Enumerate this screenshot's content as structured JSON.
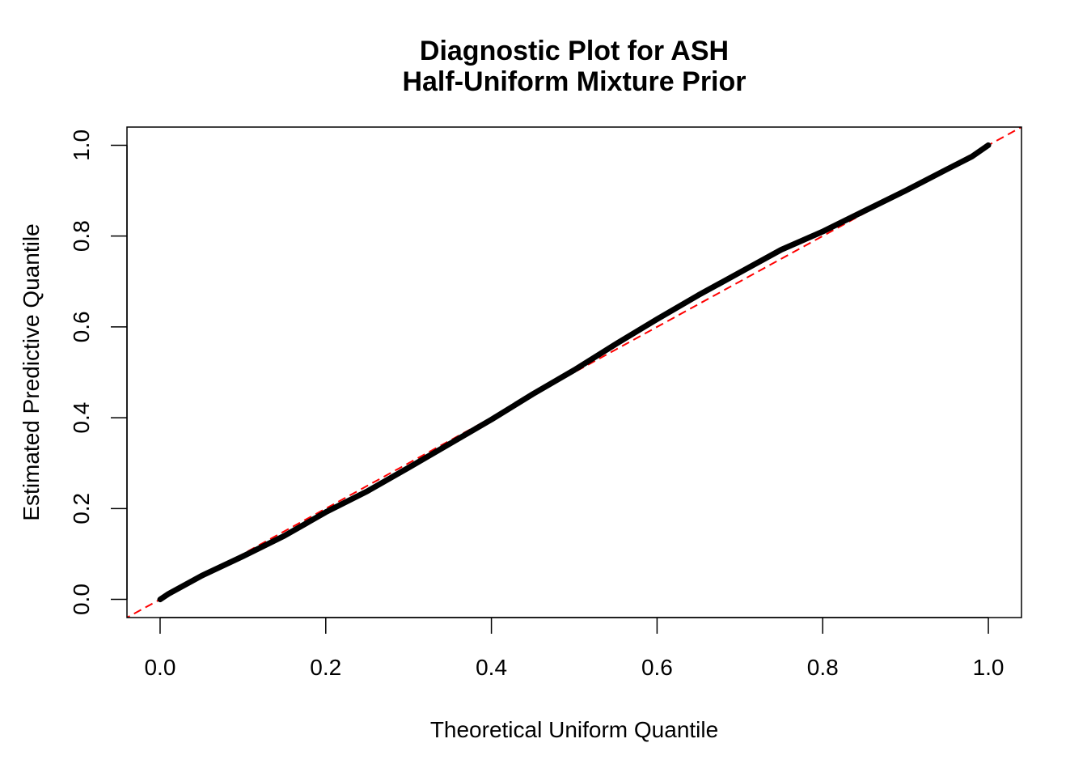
{
  "chart_data": {
    "type": "line",
    "title": "Diagnostic Plot for ASH",
    "subtitle": "Half-Uniform Mixture Prior",
    "xlabel": "Theoretical Uniform Quantile",
    "ylabel": "Estimated Predictive Quantile",
    "xlim": [
      -0.04,
      1.04
    ],
    "ylim": [
      -0.04,
      1.04
    ],
    "grid": false,
    "xticks": [
      "0.0",
      "0.2",
      "0.4",
      "0.6",
      "0.8",
      "1.0"
    ],
    "yticks": [
      "0.0",
      "0.2",
      "0.4",
      "0.6",
      "0.8",
      "1.0"
    ],
    "series": [
      {
        "color": "#000000",
        "style": "thick-points",
        "x": [
          0,
          0.01,
          0.05,
          0.1,
          0.15,
          0.2,
          0.25,
          0.3,
          0.35,
          0.4,
          0.45,
          0.5,
          0.55,
          0.6,
          0.65,
          0.7,
          0.75,
          0.8,
          0.85,
          0.9,
          0.95,
          0.98,
          1.0
        ],
        "y": [
          0,
          0.012,
          0.052,
          0.095,
          0.14,
          0.192,
          0.238,
          0.29,
          0.343,
          0.396,
          0.452,
          0.505,
          0.562,
          0.617,
          0.67,
          0.72,
          0.77,
          0.81,
          0.855,
          0.9,
          0.947,
          0.975,
          1.0
        ]
      }
    ],
    "reference_line": {
      "type": "y = x",
      "color": "#ff0000",
      "style": "dashed"
    }
  }
}
